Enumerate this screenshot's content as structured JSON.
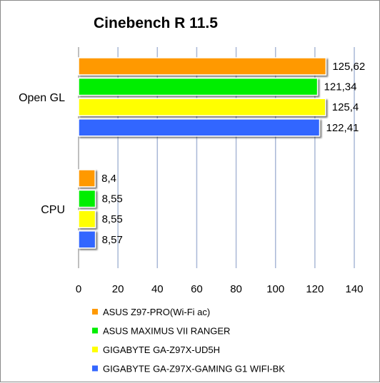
{
  "chart_data": {
    "type": "bar",
    "orientation": "horizontal",
    "title": "Cinebench R 11.5",
    "categories": [
      "Open GL",
      "CPU"
    ],
    "series": [
      {
        "name": "ASUS Z97-PRO(Wi-Fi ac)",
        "color": "#ff9900",
        "values": [
          125.62,
          8.4
        ],
        "labels": [
          "125,62",
          "8,4"
        ]
      },
      {
        "name": "ASUS MAXIMUS VII RANGER",
        "color": "#00ee00",
        "values": [
          121.34,
          8.55
        ],
        "labels": [
          "121,34",
          "8,55"
        ]
      },
      {
        "name": "GIGABYTE GA-Z97X-UD5H",
        "color": "#ffff00",
        "values": [
          125.4,
          8.55
        ],
        "labels": [
          "125,4",
          "8,55"
        ]
      },
      {
        "name": "GIGABYTE GA-Z97X-GAMING G1 WIFI-BK",
        "color": "#3366ff",
        "values": [
          122.41,
          8.57
        ],
        "labels": [
          "122,41",
          "8,57"
        ]
      }
    ],
    "xlim": [
      0,
      140
    ],
    "xticks": [
      "0",
      "20",
      "40",
      "60",
      "80",
      "100",
      "120",
      "140"
    ],
    "xtick_values": [
      0,
      20,
      40,
      60,
      80,
      100,
      120,
      140
    ],
    "grid": true,
    "legend_position": "bottom",
    "xlabel": "",
    "ylabel": ""
  }
}
